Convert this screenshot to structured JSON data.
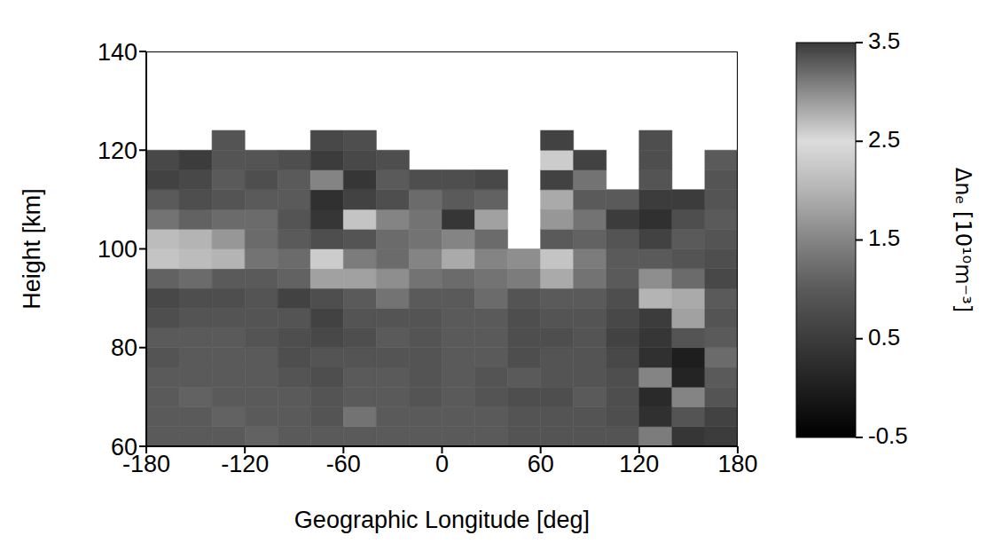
{
  "chart_data": {
    "type": "heatmap",
    "x_label": "Geographic Longitude [deg]",
    "y_label": "Height [km]",
    "xlim": [
      -180,
      180
    ],
    "xticks": [
      -180,
      -120,
      -60,
      0,
      60,
      120,
      180
    ],
    "ylim": [
      60,
      140
    ],
    "yticks": [
      60,
      80,
      100,
      120,
      140
    ],
    "x_edges": [
      -180,
      -160,
      -140,
      -120,
      -100,
      -80,
      -60,
      -40,
      -20,
      0,
      20,
      40,
      60,
      80,
      100,
      120,
      140,
      160,
      180
    ],
    "y_edges": [
      60,
      64,
      68,
      72,
      76,
      80,
      84,
      88,
      92,
      96,
      100,
      104,
      108,
      112,
      116,
      120,
      124
    ],
    "cells": [
      [
        1.0,
        1.0,
        1.0,
        1.1,
        1.0,
        1.0,
        1.0,
        1.0,
        1.0,
        1.0,
        1.0,
        0.9,
        0.9,
        0.9,
        0.9,
        1.4,
        0.4,
        0.5
      ],
      [
        1.0,
        1.0,
        1.1,
        1.0,
        1.0,
        0.9,
        1.3,
        1.0,
        1.0,
        1.0,
        1.0,
        0.9,
        0.9,
        0.9,
        0.8,
        0.3,
        0.9,
        0.6
      ],
      [
        1.0,
        1.1,
        1.0,
        1.0,
        1.0,
        0.9,
        1.0,
        1.0,
        0.9,
        1.0,
        0.9,
        0.8,
        0.8,
        1.0,
        0.8,
        0.2,
        1.5,
        0.9
      ],
      [
        1.0,
        1.0,
        1.0,
        1.0,
        0.9,
        0.8,
        1.0,
        1.0,
        0.9,
        1.0,
        0.9,
        1.0,
        0.9,
        0.9,
        0.8,
        1.5,
        0.1,
        1.0
      ],
      [
        0.9,
        1.0,
        1.0,
        1.0,
        0.8,
        0.9,
        0.9,
        0.9,
        0.9,
        1.0,
        1.0,
        0.8,
        0.9,
        0.9,
        0.7,
        0.3,
        0.0,
        1.2
      ],
      [
        1.0,
        1.0,
        1.0,
        0.9,
        0.8,
        0.7,
        0.8,
        1.0,
        0.9,
        1.0,
        1.0,
        0.8,
        0.8,
        0.9,
        0.6,
        0.4,
        0.9,
        1.0
      ],
      [
        0.8,
        0.9,
        0.9,
        0.9,
        0.9,
        0.6,
        0.9,
        0.9,
        0.9,
        1.0,
        1.0,
        0.8,
        0.9,
        0.9,
        0.7,
        0.5,
        1.8,
        0.9
      ],
      [
        0.7,
        0.8,
        0.8,
        0.9,
        0.6,
        0.8,
        1.0,
        1.3,
        1.0,
        1.0,
        1.2,
        0.9,
        1.0,
        1.0,
        0.8,
        2.0,
        1.9,
        1.0
      ],
      [
        1.1,
        1.2,
        1.0,
        1.0,
        1.1,
        1.8,
        1.8,
        1.6,
        1.3,
        1.2,
        1.3,
        1.4,
        1.9,
        1.3,
        1.0,
        1.6,
        1.2,
        0.7
      ],
      [
        2.2,
        2.1,
        2.0,
        1.3,
        1.2,
        2.3,
        1.4,
        1.2,
        1.5,
        1.9,
        1.5,
        1.6,
        2.2,
        1.4,
        1.0,
        1.0,
        0.9,
        0.8
      ],
      [
        2.1,
        2.0,
        1.7,
        1.2,
        1.0,
        0.8,
        0.9,
        1.2,
        1.3,
        1.5,
        1.2,
        null,
        1.0,
        1.1,
        0.9,
        0.6,
        1.0,
        0.9
      ],
      [
        1.3,
        1.1,
        1.2,
        1.2,
        0.9,
        0.4,
        2.2,
        1.5,
        1.3,
        0.4,
        1.8,
        null,
        1.7,
        1.3,
        0.5,
        0.3,
        0.8,
        1.0
      ],
      [
        1.0,
        0.8,
        0.9,
        1.0,
        1.0,
        0.3,
        0.6,
        0.8,
        1.2,
        1.0,
        1.1,
        null,
        1.9,
        1.0,
        1.0,
        0.5,
        0.5,
        0.9
      ],
      [
        0.6,
        0.7,
        1.0,
        0.8,
        1.0,
        1.5,
        0.4,
        1.0,
        0.8,
        0.8,
        0.7,
        null,
        0.6,
        1.3,
        null,
        0.9,
        null,
        0.9
      ],
      [
        0.7,
        0.5,
        0.9,
        0.9,
        0.8,
        0.5,
        0.7,
        0.8,
        null,
        null,
        null,
        null,
        2.3,
        0.6,
        null,
        0.8,
        null,
        1.0
      ],
      [
        null,
        null,
        0.9,
        null,
        null,
        0.7,
        0.8,
        null,
        null,
        null,
        null,
        null,
        0.6,
        null,
        null,
        0.8,
        null,
        null
      ]
    ],
    "colorbar": {
      "label": "Δnₑ [10¹⁰m⁻³]",
      "range": [
        -0.5,
        3.5
      ],
      "ticks": [
        -0.5,
        0.5,
        1.5,
        2.5,
        3.5
      ]
    }
  }
}
